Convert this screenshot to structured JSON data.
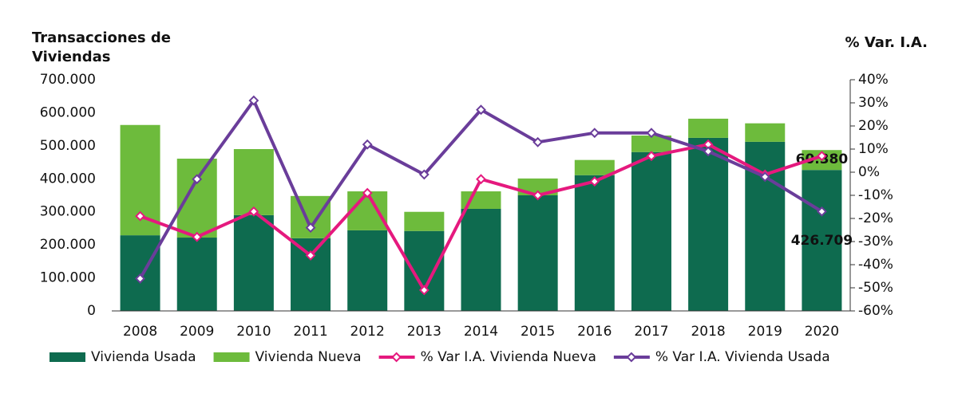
{
  "chart_data": {
    "type": "bar",
    "title": "Transacciones de Viviendas",
    "y2_title": "% Var. I.A.",
    "categories": [
      "2008",
      "2009",
      "2010",
      "2011",
      "2012",
      "2013",
      "2014",
      "2015",
      "2016",
      "2017",
      "2018",
      "2019",
      "2020"
    ],
    "series": [
      {
        "name": "Vivienda Usada",
        "type": "bar",
        "color": "#0e6b4f",
        "values": [
          229000,
          222000,
          290000,
          220000,
          244000,
          242000,
          309000,
          350000,
          411000,
          481000,
          524000,
          512000,
          426709
        ],
        "value_labels": [
          null,
          null,
          null,
          null,
          null,
          null,
          null,
          null,
          null,
          null,
          null,
          null,
          "426.709"
        ]
      },
      {
        "name": "Vivienda Nueva",
        "type": "bar",
        "color": "#6dbb3c",
        "values": [
          334000,
          239000,
          200000,
          128000,
          118000,
          58000,
          53000,
          51000,
          46000,
          50000,
          58000,
          56000,
          60380
        ],
        "value_labels": [
          null,
          null,
          null,
          null,
          null,
          null,
          null,
          null,
          null,
          null,
          null,
          null,
          "60.380"
        ]
      },
      {
        "name": "% Var I.A. Vivienda Nueva",
        "type": "line",
        "axis": "y2",
        "color": "#e5197e",
        "values": [
          -19,
          -28,
          -17,
          -36,
          -9,
          -51,
          -3,
          -10,
          -4,
          7,
          12,
          -1,
          7
        ]
      },
      {
        "name": "% Var I.A. Vivienda Usada",
        "type": "line",
        "axis": "y2",
        "color": "#6a3d9a",
        "values": [
          -46,
          -3,
          31,
          -24,
          12,
          -1,
          27,
          13,
          17,
          17,
          9,
          -2,
          -17
        ]
      }
    ],
    "ylim": [
      0,
      700000
    ],
    "yticks": [
      0,
      {
        "value": 100000,
        "label": "100.000"
      },
      {
        "value": 200000,
        "label": "200.000"
      },
      {
        "value": 300000,
        "label": "300.000"
      },
      {
        "value": 400000,
        "label": "400.000"
      },
      {
        "value": 500000,
        "label": "500.000"
      },
      {
        "value": 600000,
        "label": "600.000"
      },
      {
        "value": 700000,
        "label": "700.000"
      }
    ],
    "y2lim": [
      -60,
      40
    ],
    "y2ticks": [
      {
        "value": -60,
        "label": "-60%"
      },
      {
        "value": -50,
        "label": "-50%"
      },
      {
        "value": -40,
        "label": "-40%"
      },
      {
        "value": -30,
        "label": "-30%"
      },
      {
        "value": -20,
        "label": "-20%"
      },
      {
        "value": -10,
        "label": "-10%"
      },
      {
        "value": 0,
        "label": "0%"
      },
      {
        "value": 10,
        "label": "10%"
      },
      {
        "value": 20,
        "label": "20%"
      },
      {
        "value": 30,
        "label": "30%"
      },
      {
        "value": 40,
        "label": "40%"
      }
    ],
    "legend": "bottom"
  }
}
